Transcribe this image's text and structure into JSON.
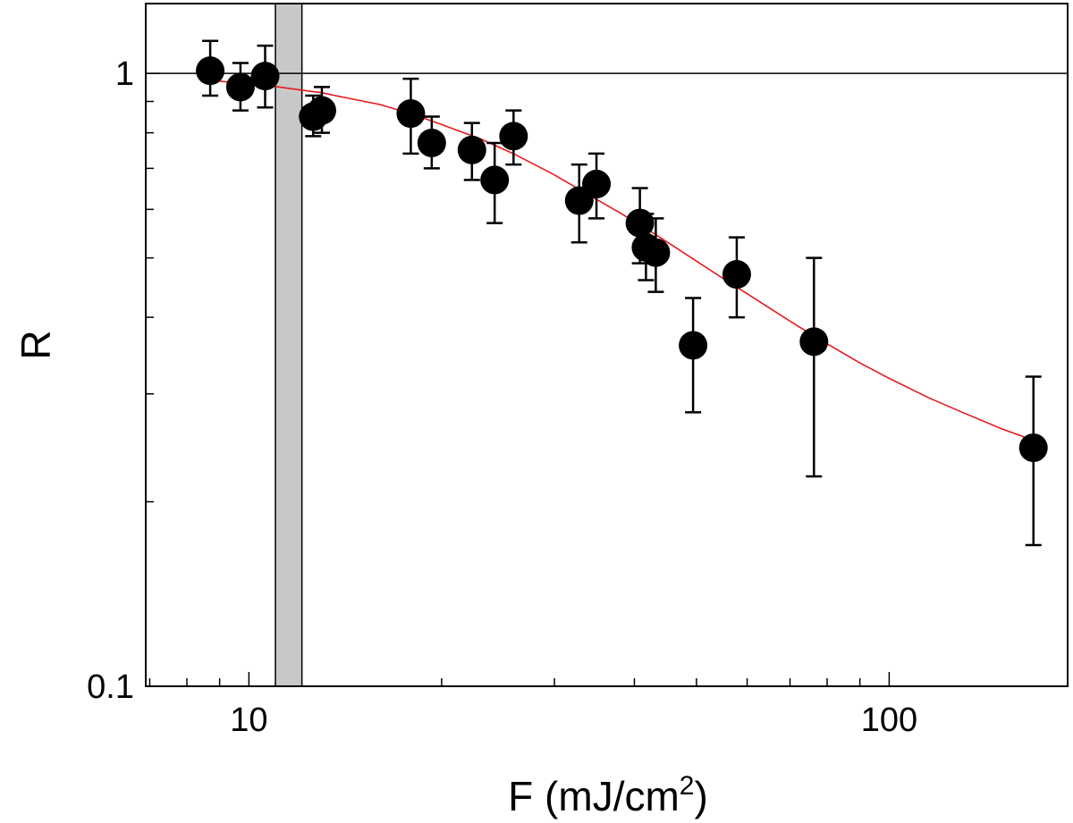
{
  "chart_data": {
    "type": "scatter",
    "xlabel": "F (mJ/cm",
    "xlabel_sup": "2",
    "xlabel_end": ")",
    "ylabel": "R",
    "xscale": "log",
    "yscale": "log",
    "xlim": [
      6.9,
      190
    ],
    "ylim": [
      0.1,
      1.3
    ],
    "x_ticks": [
      {
        "value": 10,
        "label": "10"
      },
      {
        "value": 100,
        "label": "100"
      }
    ],
    "y_ticks": [
      {
        "value": 0.1,
        "label": "0.1"
      },
      {
        "value": 1,
        "label": "1"
      }
    ],
    "reference_line_y": 1,
    "shaded_band_x": [
      11,
      12.1
    ],
    "points": [
      {
        "x": 8.7,
        "y": 1.01,
        "err_hi": 0.12,
        "err_lo": 0.09
      },
      {
        "x": 9.7,
        "y": 0.95,
        "err_hi": 0.09,
        "err_lo": 0.08
      },
      {
        "x": 10.6,
        "y": 0.99,
        "err_hi": 0.12,
        "err_lo": 0.11
      },
      {
        "x": 12.6,
        "y": 0.85,
        "err_hi": 0.07,
        "err_lo": 0.06
      },
      {
        "x": 13.0,
        "y": 0.87,
        "err_hi": 0.08,
        "err_lo": 0.07
      },
      {
        "x": 17.9,
        "y": 0.86,
        "err_hi": 0.12,
        "err_lo": 0.12
      },
      {
        "x": 19.3,
        "y": 0.77,
        "err_hi": 0.08,
        "err_lo": 0.07
      },
      {
        "x": 22.3,
        "y": 0.75,
        "err_hi": 0.08,
        "err_lo": 0.08
      },
      {
        "x": 24.2,
        "y": 0.67,
        "err_hi": 0.1,
        "err_lo": 0.1
      },
      {
        "x": 25.9,
        "y": 0.79,
        "err_hi": 0.08,
        "err_lo": 0.08
      },
      {
        "x": 32.8,
        "y": 0.62,
        "err_hi": 0.09,
        "err_lo": 0.09
      },
      {
        "x": 34.9,
        "y": 0.66,
        "err_hi": 0.08,
        "err_lo": 0.08
      },
      {
        "x": 40.8,
        "y": 0.57,
        "err_hi": 0.08,
        "err_lo": 0.08
      },
      {
        "x": 41.7,
        "y": 0.52,
        "err_hi": 0.07,
        "err_lo": 0.06
      },
      {
        "x": 43.2,
        "y": 0.51,
        "err_hi": 0.07,
        "err_lo": 0.07
      },
      {
        "x": 49.4,
        "y": 0.36,
        "err_hi": 0.07,
        "err_lo": 0.08
      },
      {
        "x": 57.8,
        "y": 0.47,
        "err_hi": 0.07,
        "err_lo": 0.07
      },
      {
        "x": 76.3,
        "y": 0.365,
        "err_hi": 0.135,
        "err_lo": 0.145
      },
      {
        "x": 168,
        "y": 0.245,
        "err_hi": 0.075,
        "err_lo": 0.075
      }
    ],
    "fit_curve": {
      "color": "#e8191c",
      "x": [
        8.7,
        10,
        11,
        12,
        13,
        14,
        16,
        18,
        20,
        23,
        26,
        30,
        34,
        38,
        42,
        46,
        50,
        55,
        60,
        66,
        72,
        80,
        90,
        100,
        115,
        130,
        150,
        168
      ],
      "y": [
        0.975,
        0.96,
        0.952,
        0.94,
        0.93,
        0.915,
        0.89,
        0.858,
        0.825,
        0.782,
        0.738,
        0.683,
        0.633,
        0.592,
        0.556,
        0.523,
        0.494,
        0.463,
        0.437,
        0.41,
        0.387,
        0.362,
        0.337,
        0.318,
        0.296,
        0.28,
        0.263,
        0.252
      ]
    },
    "point_color": "#000000",
    "band_color": "#c8c8c8",
    "grid": false,
    "legend": "none"
  }
}
